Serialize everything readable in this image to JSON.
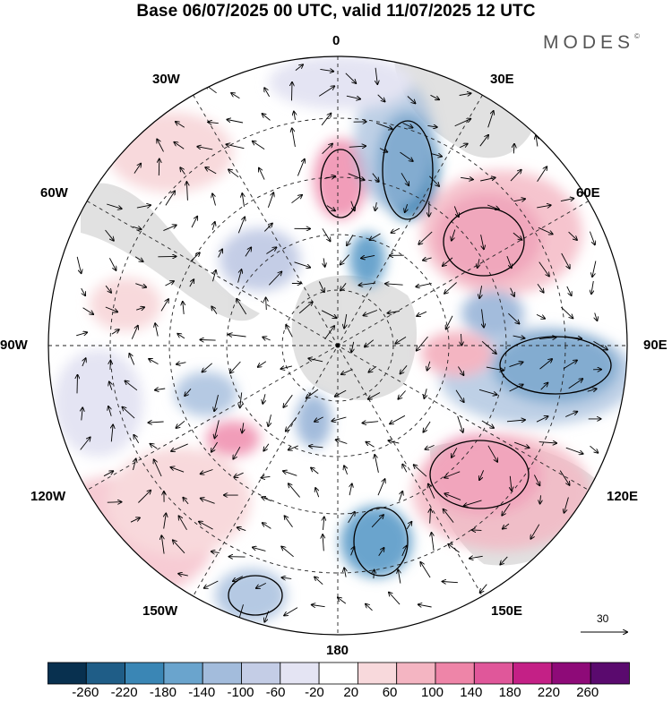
{
  "header": {
    "title": "Base 06/07/2025 00 UTC, valid 11/07/2025 12 UTC",
    "brand": "MODES",
    "brand_mark": "©"
  },
  "map": {
    "projection": "south-polar-stereographic",
    "lon_labels": {
      "top": "0",
      "top_right": "30E",
      "right_upper": "60E",
      "right": "90E",
      "right_lower": "120E",
      "bottom_right": "150E",
      "bottom": "180",
      "bottom_left": "150W",
      "left_lower": "120W",
      "left": "90W",
      "left_upper": "60W",
      "top_left": "30W"
    },
    "wind_reference": "30",
    "anomaly_centers": [
      {
        "sign": "positive",
        "strength": 1
      },
      {
        "sign": "negative",
        "strength": 2
      },
      {
        "sign": "positive",
        "strength": 2
      },
      {
        "sign": "negative",
        "strength": 3
      },
      {
        "sign": "positive",
        "strength": 3
      },
      {
        "sign": "negative",
        "strength": 2
      },
      {
        "sign": "negative",
        "strength": 1
      },
      {
        "sign": "positive",
        "strength": 1
      },
      {
        "sign": "negative",
        "strength": 1
      },
      {
        "sign": "positive",
        "strength": 1
      }
    ]
  },
  "colorbar": {
    "colors": [
      "#08304f",
      "#1f5d87",
      "#3a86b5",
      "#6aa4cd",
      "#a3bcdc",
      "#c4cde6",
      "#e4e4f3",
      "#ffffff",
      "#f8d9dc",
      "#f4b5c2",
      "#ee85a8",
      "#e0579a",
      "#c42086",
      "#8e0a78",
      "#5a0a6e"
    ],
    "ticks": [
      "-260",
      "-220",
      "-180",
      "-140",
      "-100",
      "-60",
      "-20",
      "20",
      "60",
      "100",
      "140",
      "180",
      "220",
      "260"
    ]
  }
}
